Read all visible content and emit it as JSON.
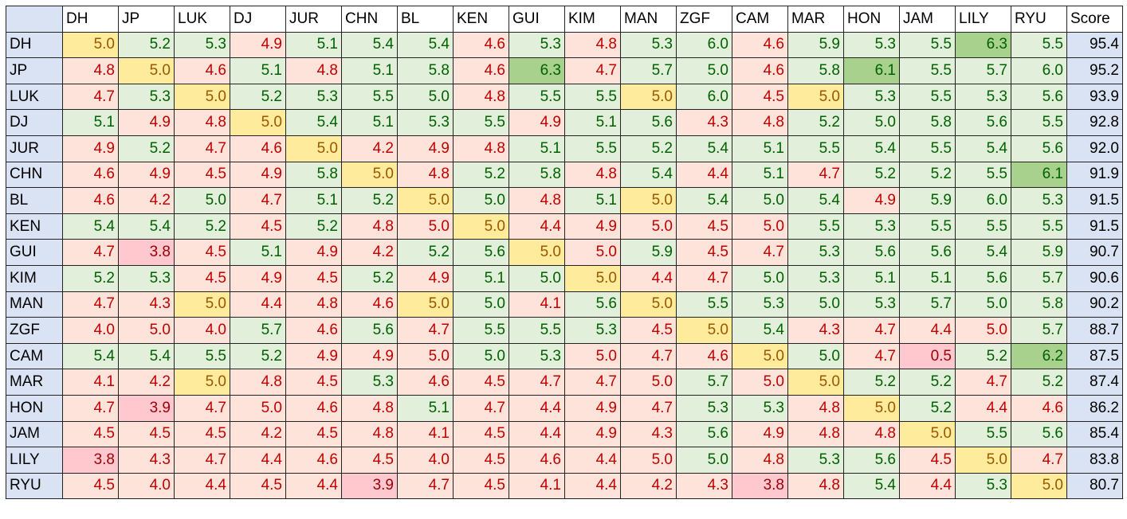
{
  "table": {
    "columns": [
      "DH",
      "JP",
      "LUK",
      "DJ",
      "JUR",
      "CHN",
      "BL",
      "KEN",
      "GUI",
      "KIM",
      "MAN",
      "ZGF",
      "CAM",
      "MAR",
      "HON",
      "JAM",
      "LILY",
      "RYU",
      "Score"
    ],
    "rows": [
      {
        "label": "DH",
        "cells": [
          "5.0",
          "5.2",
          "5.3",
          "4.9",
          "5.1",
          "5.4",
          "5.4",
          "4.6",
          "5.3",
          "4.8",
          "5.3",
          "6.0",
          "4.6",
          "5.9",
          "5.3",
          "5.5",
          "6.3",
          "5.5"
        ],
        "score": "95.4",
        "tones": "YGGRGGGRGRGGRGGGDG"
      },
      {
        "label": "JP",
        "cells": [
          "4.8",
          "5.0",
          "4.6",
          "5.1",
          "4.8",
          "5.1",
          "5.8",
          "4.6",
          "6.3",
          "4.7",
          "5.7",
          "5.0",
          "4.6",
          "5.8",
          "6.1",
          "5.5",
          "5.7",
          "6.0"
        ],
        "score": "95.2",
        "tones": "RYRGRGGRDRGGRGDGGG"
      },
      {
        "label": "LUK",
        "cells": [
          "4.7",
          "5.3",
          "5.0",
          "5.2",
          "5.3",
          "5.5",
          "5.0",
          "4.8",
          "5.5",
          "5.5",
          "5.0",
          "6.0",
          "4.5",
          "5.0",
          "5.3",
          "5.5",
          "5.3",
          "5.6"
        ],
        "score": "93.9",
        "tones": "RGYGGGGRGGYGRYGGGG"
      },
      {
        "label": "DJ",
        "cells": [
          "5.1",
          "4.9",
          "4.8",
          "5.0",
          "5.4",
          "5.1",
          "5.3",
          "5.5",
          "4.9",
          "5.1",
          "5.6",
          "4.3",
          "4.8",
          "5.2",
          "5.0",
          "5.8",
          "5.6",
          "5.5"
        ],
        "score": "92.8",
        "tones": "GRRYGGGGRGGRRGGGGG"
      },
      {
        "label": "JUR",
        "cells": [
          "4.9",
          "5.2",
          "4.7",
          "4.6",
          "5.0",
          "4.2",
          "4.9",
          "4.8",
          "5.1",
          "5.5",
          "5.2",
          "5.4",
          "5.1",
          "5.5",
          "5.4",
          "5.5",
          "5.4",
          "5.6"
        ],
        "score": "92.0",
        "tones": "RGRRYRRRGGGGGGGGGG"
      },
      {
        "label": "CHN",
        "cells": [
          "4.6",
          "4.9",
          "4.5",
          "4.9",
          "5.8",
          "5.0",
          "4.8",
          "5.2",
          "5.8",
          "4.8",
          "5.4",
          "4.4",
          "5.1",
          "4.7",
          "5.2",
          "5.2",
          "5.5",
          "6.1"
        ],
        "score": "91.9",
        "tones": "RRRRGYRGGRGRGRGGGD"
      },
      {
        "label": "BL",
        "cells": [
          "4.6",
          "4.2",
          "5.0",
          "4.7",
          "5.1",
          "5.2",
          "5.0",
          "5.0",
          "4.8",
          "5.1",
          "5.0",
          "5.4",
          "5.0",
          "5.4",
          "4.9",
          "5.9",
          "6.0",
          "5.3"
        ],
        "score": "91.5",
        "tones": "RRGRGGYGRGYGGGRGGG"
      },
      {
        "label": "KEN",
        "cells": [
          "5.4",
          "5.4",
          "5.2",
          "4.5",
          "5.2",
          "4.8",
          "5.0",
          "5.0",
          "4.4",
          "4.9",
          "5.0",
          "4.5",
          "5.0",
          "5.5",
          "5.3",
          "5.5",
          "5.5",
          "5.5"
        ],
        "score": "91.5",
        "tones": "GGGRGRRYRRRRRGGGGG"
      },
      {
        "label": "GUI",
        "cells": [
          "4.7",
          "3.8",
          "4.5",
          "5.1",
          "4.9",
          "4.2",
          "5.2",
          "5.6",
          "5.0",
          "5.0",
          "5.9",
          "4.5",
          "4.7",
          "5.3",
          "5.6",
          "5.6",
          "5.4",
          "5.9"
        ],
        "score": "90.7",
        "tones": "RPRGRRGGYRGRRGGGGG"
      },
      {
        "label": "KIM",
        "cells": [
          "5.2",
          "5.3",
          "4.5",
          "4.9",
          "4.5",
          "5.2",
          "4.9",
          "5.1",
          "5.0",
          "5.0",
          "4.4",
          "4.7",
          "5.0",
          "5.3",
          "5.1",
          "5.1",
          "5.6",
          "5.7"
        ],
        "score": "90.6",
        "tones": "GGRRRGRGGYRRGGGGGG"
      },
      {
        "label": "MAN",
        "cells": [
          "4.7",
          "4.3",
          "5.0",
          "4.4",
          "4.8",
          "4.6",
          "5.0",
          "5.0",
          "4.1",
          "5.6",
          "5.0",
          "5.5",
          "5.3",
          "5.0",
          "5.3",
          "5.7",
          "5.0",
          "5.8"
        ],
        "score": "90.2",
        "tones": "RRYRRRYGRGYGGGGGGG"
      },
      {
        "label": "ZGF",
        "cells": [
          "4.0",
          "5.0",
          "4.0",
          "5.7",
          "4.6",
          "5.6",
          "4.7",
          "5.5",
          "5.5",
          "5.3",
          "4.5",
          "5.0",
          "5.4",
          "4.3",
          "4.7",
          "4.4",
          "5.0",
          "5.7"
        ],
        "score": "88.7",
        "tones": "RRRGRGRGGGRYGRRRRG"
      },
      {
        "label": "CAM",
        "cells": [
          "5.4",
          "5.4",
          "5.5",
          "5.2",
          "4.9",
          "4.9",
          "5.0",
          "5.0",
          "5.3",
          "5.0",
          "4.7",
          "4.6",
          "5.0",
          "5.0",
          "4.7",
          "0.5",
          "5.2",
          "6.2"
        ],
        "score": "87.5",
        "tones": "GGGGRRRGGRRRYGRPGD"
      },
      {
        "label": "MAR",
        "cells": [
          "4.1",
          "4.2",
          "5.0",
          "4.8",
          "4.5",
          "5.3",
          "4.6",
          "4.5",
          "4.7",
          "4.7",
          "5.0",
          "5.7",
          "5.0",
          "5.0",
          "5.2",
          "5.2",
          "4.7",
          "5.2"
        ],
        "score": "87.4",
        "tones": "RRYRRGRRRRRGRYGGRG"
      },
      {
        "label": "HON",
        "cells": [
          "4.7",
          "3.9",
          "4.7",
          "5.0",
          "4.6",
          "4.8",
          "5.1",
          "4.7",
          "4.4",
          "4.9",
          "4.7",
          "5.3",
          "5.3",
          "4.8",
          "5.0",
          "5.2",
          "4.4",
          "4.6"
        ],
        "score": "86.2",
        "tones": "RPRRRRGRRRRGGRYGRR"
      },
      {
        "label": "JAM",
        "cells": [
          "4.5",
          "4.5",
          "4.5",
          "4.2",
          "4.5",
          "4.8",
          "4.1",
          "4.5",
          "4.4",
          "4.9",
          "4.3",
          "5.6",
          "4.9",
          "4.8",
          "4.8",
          "5.0",
          "5.5",
          "5.6"
        ],
        "score": "85.4",
        "tones": "RRRRRRRRRRRGRRRYGG"
      },
      {
        "label": "LILY",
        "cells": [
          "3.8",
          "4.3",
          "4.7",
          "4.4",
          "4.6",
          "4.5",
          "4.0",
          "4.5",
          "4.6",
          "4.4",
          "5.0",
          "5.0",
          "4.8",
          "5.3",
          "5.6",
          "4.5",
          "5.0",
          "4.7"
        ],
        "score": "83.8",
        "tones": "PRRRRRRRRRRGRGGRYR"
      },
      {
        "label": "RYU",
        "cells": [
          "4.5",
          "4.0",
          "4.4",
          "4.5",
          "4.4",
          "3.9",
          "4.7",
          "4.5",
          "4.1",
          "4.4",
          "4.2",
          "4.3",
          "3.8",
          "4.8",
          "5.4",
          "4.4",
          "5.3",
          "5.0"
        ],
        "score": "80.7",
        "tones": "RRRRRPRRRRRRPRGRGY"
      }
    ],
    "tone_palette": {
      "R": {
        "fill": "#fde3d9",
        "text": "#c00000"
      },
      "G": {
        "fill": "#e2efda",
        "text": "#006100"
      },
      "D": {
        "fill": "#a9d18e",
        "text": "#006100"
      },
      "Y": {
        "fill": "#ffeb9c",
        "text": "#9c5700"
      },
      "P": {
        "fill": "#ffc7ce",
        "text": "#9c0006"
      }
    }
  }
}
